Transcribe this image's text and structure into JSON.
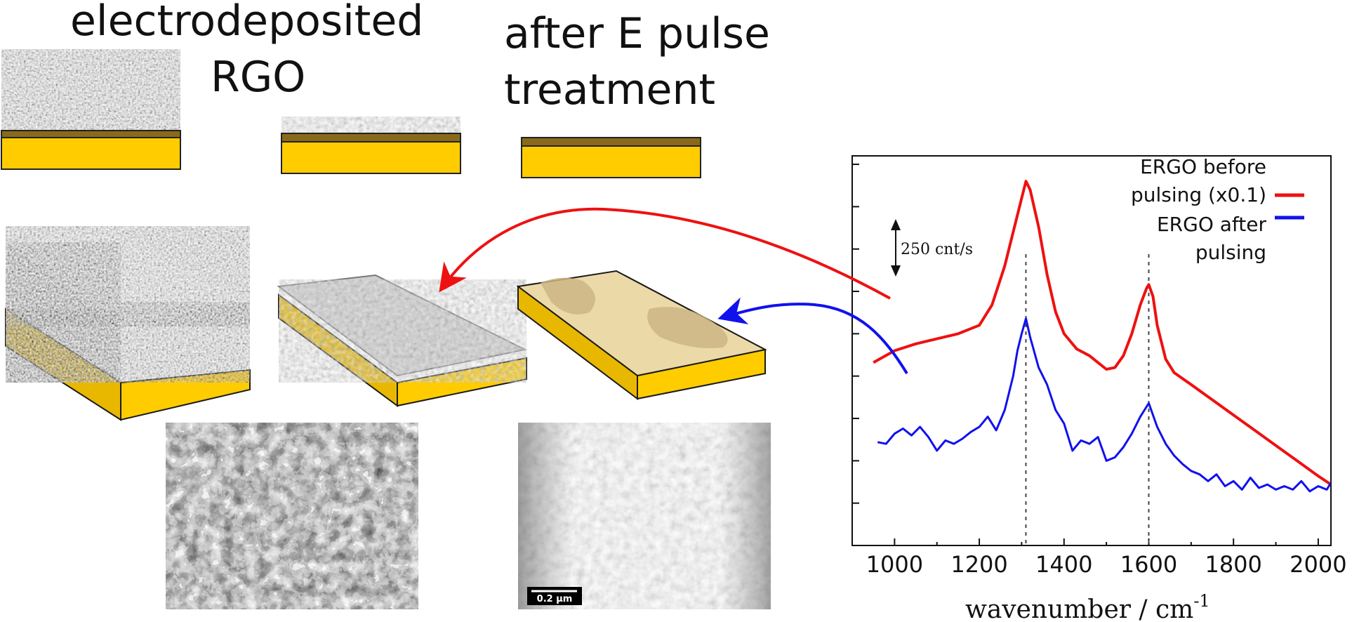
{
  "labels": {
    "electrodeposited_line1": "electrodeposited",
    "electrodeposited_line2": "RGO",
    "after_line1": "after E pulse",
    "after_line2": "treatment"
  },
  "sem": {
    "scale_bar_label": "0.2 µm"
  },
  "colors": {
    "gold": "#ffcc00",
    "gold_edge": "#1a1a1a",
    "rgo_band": "#8a6a1a",
    "red_series": "#ee1111",
    "blue_series": "#1111ee",
    "tan_surface": "#ecd9a8"
  },
  "chart_data": {
    "type": "line",
    "xlabel": "wavenumber / cm",
    "xlabel_sup": "-1",
    "xlim": [
      900,
      2030
    ],
    "xticks": [
      1000,
      1200,
      1400,
      1600,
      1800,
      2000
    ],
    "ylabel": "",
    "scale_annotation": "250 cnt/s",
    "reference_lines": [
      1310,
      1600
    ],
    "series": [
      {
        "name": "ERGO before pulsing (x0.1)",
        "legend_line1": "ERGO before",
        "legend_line2": "pulsing (x0.1)",
        "x": [
          950,
          1000,
          1050,
          1100,
          1150,
          1200,
          1230,
          1260,
          1280,
          1300,
          1310,
          1320,
          1340,
          1360,
          1380,
          1400,
          1430,
          1460,
          1480,
          1500,
          1520,
          1540,
          1560,
          1580,
          1595,
          1600,
          1610,
          1620,
          1640,
          1660,
          1700,
          1750,
          1800,
          1850,
          1900,
          1950,
          2000,
          2030
        ],
        "y": [
          1080,
          1150,
          1190,
          1220,
          1250,
          1300,
          1420,
          1650,
          1850,
          2050,
          2150,
          2100,
          1880,
          1600,
          1380,
          1250,
          1160,
          1120,
          1080,
          1040,
          1050,
          1120,
          1250,
          1420,
          1520,
          1540,
          1470,
          1300,
          1100,
          1020,
          950,
          860,
          770,
          680,
          590,
          500,
          410,
          360
        ]
      },
      {
        "name": "ERGO after pulsing",
        "legend_line1": "ERGO after",
        "legend_line2": "pulsing",
        "x": [
          960,
          980,
          1000,
          1020,
          1040,
          1060,
          1080,
          1100,
          1120,
          1140,
          1160,
          1180,
          1200,
          1220,
          1240,
          1260,
          1280,
          1290,
          1300,
          1310,
          1320,
          1340,
          1360,
          1380,
          1400,
          1420,
          1440,
          1460,
          1480,
          1500,
          1520,
          1540,
          1560,
          1580,
          1590,
          1600,
          1610,
          1620,
          1640,
          1660,
          1680,
          1700,
          1720,
          1740,
          1760,
          1780,
          1800,
          1820,
          1840,
          1860,
          1880,
          1900,
          1920,
          1940,
          1960,
          1980,
          2000,
          2020,
          2030
        ],
        "y": [
          610,
          600,
          660,
          690,
          650,
          700,
          640,
          560,
          620,
          600,
          630,
          670,
          700,
          760,
          680,
          800,
          1000,
          1150,
          1250,
          1340,
          1230,
          1050,
          950,
          800,
          720,
          560,
          620,
          600,
          640,
          500,
          520,
          580,
          660,
          760,
          800,
          840,
          770,
          700,
          600,
          530,
          480,
          440,
          420,
          380,
          420,
          350,
          380,
          330,
          400,
          340,
          360,
          330,
          350,
          330,
          380,
          320,
          350,
          330,
          370
        ]
      }
    ]
  }
}
